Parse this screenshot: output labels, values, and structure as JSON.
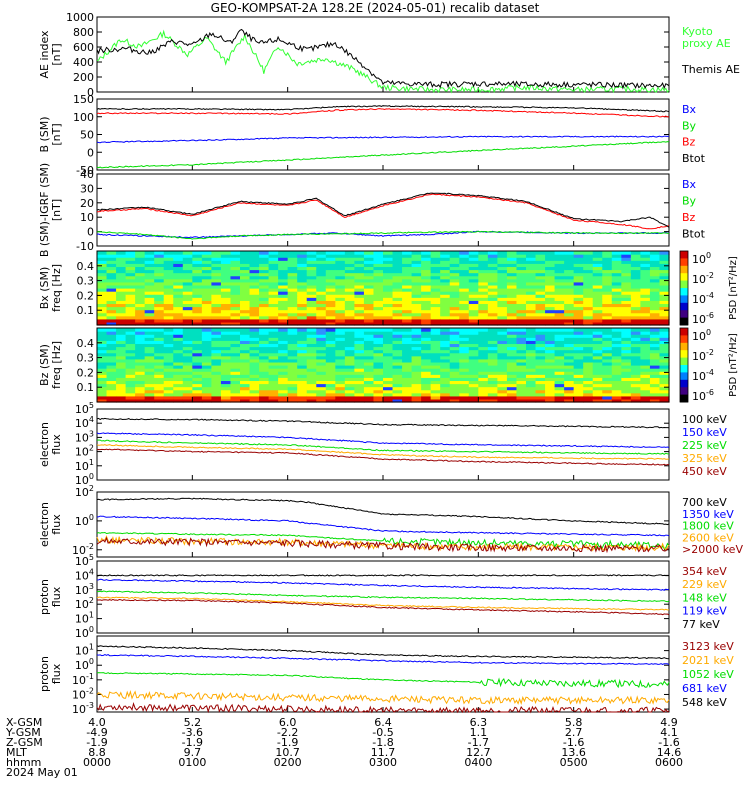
{
  "title": "GEO-KOMPSAT-2A 128.2E (2024-05-01) recalib dataset",
  "colors": {
    "black": "#000000",
    "red": "#ff0000",
    "blue": "#0000ff",
    "green": "#00dd00",
    "orange": "#ffaa00",
    "darkred": "#990000",
    "lime": "#33ff33"
  },
  "chart_data": [
    {
      "type": "line",
      "panel": "ae_index",
      "ylabel": [
        "AE index",
        "[nT]"
      ],
      "ylim": [
        0,
        1000
      ],
      "y_ticks": [
        "0",
        "200",
        "400",
        "600",
        "800",
        "1000"
      ],
      "y_tick_values": [
        0,
        200,
        400,
        600,
        800,
        1000
      ],
      "legend_placement": "right",
      "series": [
        {
          "name": "Kyoto\nproxy AE",
          "legend": [
            "Kyoto",
            "proxy AE"
          ],
          "color": "#33ff33",
          "x_hours": [
            0,
            0.25,
            0.45,
            0.7,
            0.95,
            1.15,
            1.35,
            1.55,
            1.75,
            1.9,
            2.1,
            2.4,
            2.7,
            3.0,
            3.5,
            4.0,
            4.5,
            5.0,
            5.5,
            6.0
          ],
          "values": [
            400,
            700,
            600,
            780,
            500,
            720,
            400,
            750,
            280,
            620,
            380,
            450,
            300,
            60,
            30,
            30,
            60,
            30,
            40,
            30
          ]
        },
        {
          "name": "Themis AE",
          "legend": [
            "Themis AE"
          ],
          "color": "#000000",
          "x_hours": [
            0,
            0.3,
            0.55,
            0.8,
            1.0,
            1.2,
            1.4,
            1.5,
            1.7,
            1.9,
            2.2,
            2.5,
            2.8,
            3.0,
            3.5,
            4.0,
            4.5,
            5.0,
            5.5,
            6.0
          ],
          "values": [
            550,
            580,
            520,
            680,
            620,
            780,
            650,
            820,
            640,
            700,
            560,
            650,
            350,
            120,
            100,
            110,
            100,
            100,
            90,
            80
          ]
        }
      ]
    },
    {
      "type": "line",
      "panel": "b_sm",
      "ylabel": [
        "B (SM)",
        "[nT]"
      ],
      "ylim": [
        -50,
        150
      ],
      "y_ticks": [
        "-50",
        "0",
        "50",
        "100",
        "150"
      ],
      "y_tick_values": [
        -50,
        0,
        50,
        100,
        150
      ],
      "legend_placement": "right",
      "series": [
        {
          "name": "Bx",
          "color": "#0000ff",
          "x_hours": [
            0,
            1,
            2,
            3,
            4,
            5,
            6
          ],
          "values": [
            28,
            33,
            40,
            42,
            44,
            44,
            44
          ]
        },
        {
          "name": "By",
          "color": "#00dd00",
          "x_hours": [
            0,
            1,
            2,
            3,
            4,
            5,
            6
          ],
          "values": [
            -43,
            -35,
            -22,
            -8,
            5,
            17,
            30
          ]
        },
        {
          "name": "Bz",
          "color": "#ff0000",
          "x_hours": [
            0,
            1,
            2,
            2.5,
            3,
            4,
            5,
            5.5,
            6
          ],
          "values": [
            110,
            110,
            108,
            118,
            122,
            118,
            110,
            105,
            100
          ]
        },
        {
          "name": "Btot",
          "color": "#000000",
          "x_hours": [
            0,
            1,
            2,
            2.5,
            3,
            4,
            5,
            5.5,
            6
          ],
          "values": [
            122,
            122,
            120,
            128,
            130,
            128,
            125,
            120,
            115
          ]
        }
      ]
    },
    {
      "type": "line",
      "panel": "b_sm_minus_igrf",
      "ylabel": [
        "B (SM)-IGRF (SM)",
        "[nT]"
      ],
      "ylim": [
        -10,
        40
      ],
      "y_ticks": [
        "-10",
        "0",
        "10",
        "20",
        "30",
        "40"
      ],
      "y_tick_values": [
        -10,
        0,
        10,
        20,
        30,
        40
      ],
      "legend_placement": "right",
      "series": [
        {
          "name": "Bx",
          "color": "#0000ff",
          "x_hours": [
            0,
            1,
            2,
            2.5,
            3,
            3.5,
            4,
            5,
            6
          ],
          "values": [
            -2,
            -4,
            -2,
            -1,
            -3,
            -2,
            0,
            -1,
            -1
          ]
        },
        {
          "name": "By",
          "color": "#00dd00",
          "x_hours": [
            0,
            0.5,
            1,
            1.5,
            2,
            3,
            4,
            5,
            6
          ],
          "values": [
            0,
            -2,
            -5,
            -3,
            -2,
            -1,
            0,
            -1,
            -1
          ]
        },
        {
          "name": "Bz",
          "color": "#ff0000",
          "x_hours": [
            0,
            0.5,
            1,
            1.5,
            2,
            2.3,
            2.6,
            3,
            3.5,
            4,
            4.5,
            5,
            5.5,
            5.8,
            6
          ],
          "values": [
            14,
            16,
            11,
            20,
            18,
            22,
            10,
            18,
            26,
            24,
            20,
            8,
            5,
            2,
            4
          ]
        },
        {
          "name": "Btot",
          "color": "#000000",
          "x_hours": [
            0,
            0.5,
            1,
            1.5,
            2,
            2.3,
            2.6,
            3,
            3.5,
            4,
            4.5,
            5,
            5.5,
            5.8,
            6
          ],
          "values": [
            15,
            17,
            12,
            21,
            19,
            23,
            11,
            19,
            27,
            25,
            21,
            9,
            7,
            10,
            3
          ]
        }
      ]
    },
    {
      "type": "heatmap",
      "panel": "bx_psd",
      "ylabel": [
        "Bx (SM)",
        "freq [Hz]"
      ],
      "ylim": [
        0,
        0.5
      ],
      "y_ticks": [
        "0.1",
        "0.2",
        "0.3",
        "0.4"
      ],
      "y_tick_values": [
        0.1,
        0.2,
        0.3,
        0.4
      ],
      "colorbar": {
        "label": "PSD [nT^2/Hz]",
        "ticks": [
          "10^0",
          "10^-2",
          "10^-4",
          "10^-6"
        ]
      }
    },
    {
      "type": "heatmap",
      "panel": "bz_psd",
      "ylabel": [
        "Bz (SM)",
        "freq [Hz]"
      ],
      "ylim": [
        0,
        0.5
      ],
      "y_ticks": [
        "0.1",
        "0.2",
        "0.3",
        "0.4"
      ],
      "y_tick_values": [
        0.1,
        0.2,
        0.3,
        0.4
      ],
      "colorbar": {
        "label": "PSD [nT^2/Hz]",
        "ticks": [
          "10^0",
          "10^-2",
          "10^-4",
          "10^-6"
        ]
      }
    },
    {
      "type": "line",
      "panel": "electron_flux_low",
      "ylabel": [
        "electron",
        "flux"
      ],
      "log": true,
      "ylim_exp": [
        0,
        5
      ],
      "y_ticks": [
        "10^0",
        "10^1",
        "10^2",
        "10^3",
        "10^4",
        "10^5"
      ],
      "y_tick_exps": [
        0,
        1,
        2,
        3,
        4,
        5
      ],
      "legend_placement": "right",
      "series": [
        {
          "name": "100 keV",
          "color": "#000000",
          "x_hours": [
            0,
            1,
            2,
            3,
            4,
            5,
            6
          ],
          "values": [
            20000,
            18000,
            14000,
            8000,
            7000,
            6000,
            5000
          ]
        },
        {
          "name": "150 keV",
          "color": "#0000ff",
          "x_hours": [
            0,
            1,
            2,
            3,
            4,
            5,
            6
          ],
          "values": [
            2000,
            1500,
            1000,
            400,
            300,
            250,
            200
          ]
        },
        {
          "name": "225 keV",
          "color": "#00dd00",
          "x_hours": [
            0,
            1,
            2,
            3,
            4,
            5,
            6
          ],
          "values": [
            600,
            400,
            300,
            120,
            100,
            80,
            70
          ]
        },
        {
          "name": "325 keV",
          "color": "#ffaa00",
          "x_hours": [
            0,
            1,
            2,
            3,
            4,
            5,
            6
          ],
          "values": [
            300,
            200,
            150,
            60,
            40,
            35,
            30
          ]
        },
        {
          "name": "450 keV",
          "color": "#990000",
          "x_hours": [
            0,
            1,
            2,
            3,
            4,
            5,
            6
          ],
          "values": [
            150,
            100,
            80,
            30,
            20,
            15,
            12
          ]
        }
      ]
    },
    {
      "type": "line",
      "panel": "electron_flux_high",
      "ylabel": [
        "electron",
        "flux"
      ],
      "log": true,
      "ylim_exp": [
        -2.5,
        2
      ],
      "y_ticks": [
        "10^-2",
        "10^0",
        "10^2"
      ],
      "y_tick_exps": [
        -2,
        0,
        2
      ],
      "legend_placement": "right",
      "series": [
        {
          "name": "700 keV",
          "color": "#000000",
          "x_hours": [
            0,
            1,
            2,
            2.2,
            3,
            4,
            5,
            6
          ],
          "values": [
            30,
            35,
            25,
            20,
            3,
            2,
            1,
            0.6
          ]
        },
        {
          "name": "1350 keV",
          "color": "#0000ff",
          "x_hours": [
            0,
            1,
            2,
            3,
            4,
            5,
            6
          ],
          "values": [
            2,
            1.5,
            1,
            0.2,
            0.15,
            0.12,
            0.1
          ]
        },
        {
          "name": "1800 keV",
          "color": "#00dd00",
          "x_hours": [
            0,
            1,
            2,
            3,
            4,
            5,
            6
          ],
          "values": [
            0.15,
            0.12,
            0.1,
            0.04,
            0.03,
            0.025,
            0.02
          ]
        },
        {
          "name": "2600 keV",
          "color": "#ffaa00",
          "x_hours": [
            0,
            1,
            2,
            3,
            4,
            5,
            6
          ],
          "values": [
            0.05,
            0.04,
            0.035,
            0.02,
            0.015,
            0.015,
            0.015
          ]
        },
        {
          "name": ">2000 keV",
          "color": "#990000",
          "x_hours": [
            0,
            1,
            2,
            3,
            4,
            5,
            6
          ],
          "values": [
            0.04,
            0.035,
            0.03,
            0.018,
            0.014,
            0.013,
            0.012
          ]
        }
      ]
    },
    {
      "type": "line",
      "panel": "proton_flux_low",
      "ylabel": [
        "proton",
        "flux"
      ],
      "log": true,
      "ylim_exp": [
        0,
        5
      ],
      "y_ticks": [
        "10^0",
        "10^1",
        "10^2",
        "10^3",
        "10^4",
        "10^5"
      ],
      "y_tick_exps": [
        0,
        1,
        2,
        3,
        4,
        5
      ],
      "legend_placement": "right",
      "series": [
        {
          "name": "354 keV",
          "color": "#990000",
          "x_hours": [
            0,
            1,
            2,
            3,
            4,
            5,
            6
          ],
          "values": [
            200,
            180,
            120,
            60,
            40,
            30,
            20
          ]
        },
        {
          "name": "229 keV",
          "color": "#ffaa00",
          "x_hours": [
            0,
            1,
            2,
            3,
            4,
            5,
            6
          ],
          "values": [
            300,
            250,
            150,
            80,
            60,
            50,
            40
          ]
        },
        {
          "name": "148 keV",
          "color": "#00dd00",
          "x_hours": [
            0,
            1,
            2,
            3,
            4,
            5,
            6
          ],
          "values": [
            800,
            600,
            400,
            300,
            250,
            200,
            160
          ]
        },
        {
          "name": "119 keV",
          "color": "#0000ff",
          "x_hours": [
            0,
            1,
            2,
            3,
            4,
            5,
            6
          ],
          "values": [
            5000,
            4000,
            3000,
            2000,
            1500,
            1200,
            1000
          ]
        },
        {
          "name": "77 keV",
          "color": "#000000",
          "x_hours": [
            0,
            1,
            2,
            3,
            4,
            5,
            6
          ],
          "values": [
            10000,
            10000,
            10000,
            10000,
            10000,
            10000,
            10000
          ]
        }
      ]
    },
    {
      "type": "line",
      "panel": "proton_flux_high",
      "ylabel": [
        "proton",
        "flux"
      ],
      "log": true,
      "ylim_exp": [
        -3.2,
        2
      ],
      "y_ticks": [
        "10^-3",
        "10^-2",
        "10^-1",
        "10^0",
        "10^1"
      ],
      "y_tick_exps": [
        -3,
        -2,
        -1,
        0,
        1
      ],
      "legend_placement": "right",
      "series": [
        {
          "name": "3123 keV",
          "color": "#990000",
          "x_hours": [
            0,
            1,
            2,
            3,
            4,
            5,
            6
          ],
          "values": [
            0.0015,
            0.0012,
            0.001,
            0.0008,
            0.0008,
            0.0008,
            0.0008
          ]
        },
        {
          "name": "2021 keV",
          "color": "#ffaa00",
          "x_hours": [
            0,
            1,
            2,
            3,
            4,
            5,
            6
          ],
          "values": [
            0.01,
            0.008,
            0.006,
            0.005,
            0.004,
            0.004,
            0.004
          ]
        },
        {
          "name": "1052 keV",
          "color": "#00dd00",
          "x_hours": [
            0,
            1,
            2,
            3,
            4,
            5,
            6
          ],
          "values": [
            0.3,
            0.25,
            0.2,
            0.1,
            0.07,
            0.06,
            0.05
          ]
        },
        {
          "name": "681 keV",
          "color": "#0000ff",
          "x_hours": [
            0,
            1,
            2,
            3,
            4,
            5,
            6
          ],
          "values": [
            5,
            4,
            3,
            2,
            1.5,
            1.3,
            1.2
          ]
        },
        {
          "name": "548 keV",
          "color": "#000000",
          "x_hours": [
            0,
            1,
            2,
            3,
            4,
            5,
            6
          ],
          "values": [
            20,
            15,
            10,
            5,
            4,
            3.5,
            3
          ]
        }
      ]
    }
  ],
  "x_axis": {
    "row_labels": [
      "X-GSM",
      "Y-GSM",
      "Z-GSM",
      "MLT",
      "hhmm",
      "2024 May 01"
    ],
    "columns": [
      {
        "values": [
          "4.0",
          "-4.9",
          "-1.9",
          "8.8",
          "0000"
        ]
      },
      {
        "values": [
          "5.2",
          "-3.6",
          "-1.9",
          "9.7",
          "0100"
        ]
      },
      {
        "values": [
          "6.0",
          "-2.2",
          "-1.9",
          "10.7",
          "0200"
        ]
      },
      {
        "values": [
          "6.4",
          "-0.5",
          "-1.8",
          "11.7",
          "0300"
        ]
      },
      {
        "values": [
          "6.3",
          "1.1",
          "-1.7",
          "12.7",
          "0400"
        ]
      },
      {
        "values": [
          "5.8",
          "2.7",
          "-1.6",
          "13.6",
          "0500"
        ]
      },
      {
        "values": [
          "4.9",
          "4.1",
          "-1.6",
          "14.6",
          "0600"
        ]
      }
    ]
  }
}
